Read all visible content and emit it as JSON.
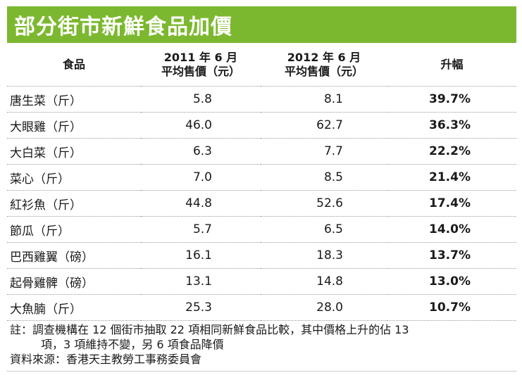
{
  "title": "部分街市新鮮食品加價",
  "headers": {
    "food": "食品",
    "y2011_line1": "2011 年 6 月",
    "y2011_line2": "平均售價（元）",
    "y2012_line1": "2012 年 6 月",
    "y2012_line2": "平均售價（元）",
    "rise": "升幅"
  },
  "rows": [
    {
      "food": "唐生菜（斤）",
      "p2011": "5.8",
      "p2012": "8.1",
      "rise": "39.7%"
    },
    {
      "food": "大眼雞（斤）",
      "p2011": "46.0",
      "p2012": "62.7",
      "rise": "36.3%"
    },
    {
      "food": "大白菜（斤）",
      "p2011": "6.3",
      "p2012": "7.7",
      "rise": "22.2%"
    },
    {
      "food": "菜心（斤）",
      "p2011": "7.0",
      "p2012": "8.5",
      "rise": "21.4%"
    },
    {
      "food": "紅衫魚（斤）",
      "p2011": "44.8",
      "p2012": "52.6",
      "rise": "17.4%"
    },
    {
      "food": "節瓜（斤）",
      "p2011": "5.7",
      "p2012": "6.5",
      "rise": "14.0%"
    },
    {
      "food": "巴西雞翼（磅）",
      "p2011": "16.1",
      "p2012": "18.3",
      "rise": "13.7%"
    },
    {
      "food": "起骨雞髀（磅）",
      "p2011": "13.1",
      "p2012": "14.8",
      "rise": "13.0%"
    },
    {
      "food": "大魚腩（斤）",
      "p2011": "25.3",
      "p2012": "28.0",
      "rise": "10.7%"
    }
  ],
  "note": {
    "line1": "註：調查機構在 12 個街市抽取 22 項相同新鮮食品比較，其中價格上升的佔 13",
    "line2": "項，3 項維持不變，另 6 項食品降價",
    "source": "資料來源：香港天主教勞工事務委員會"
  },
  "colors": {
    "title_bg": "#7cb82f",
    "title_text": "#ffffff"
  }
}
